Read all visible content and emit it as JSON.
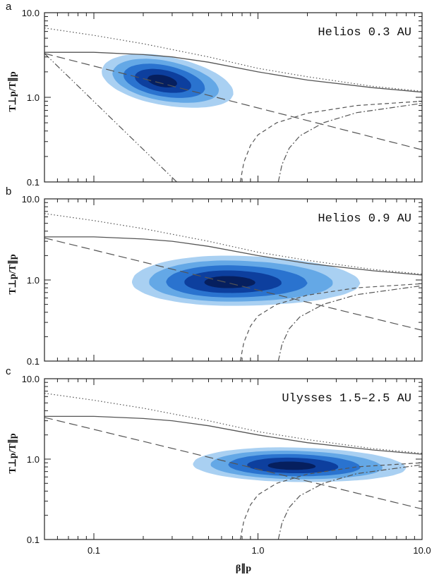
{
  "figure": {
    "xlabel": "β∥p",
    "ylabel": "T⊥p/T∥p",
    "x_tick_labels": [
      "0.1",
      "1.0",
      "10.0"
    ],
    "y_tick_labels": [
      "0.1",
      "1.0",
      "10.0"
    ]
  },
  "colors": {
    "contour_levels": [
      "#a9d0f2",
      "#64a8e6",
      "#2a73cf",
      "#0d3f9e",
      "#061f5e"
    ],
    "curves": "#555555"
  },
  "chart_data": [
    {
      "type": "contour",
      "panel": "a",
      "annotation": "Helios 0.3 AU",
      "xscale": "log",
      "yscale": "log",
      "xlim": [
        0.05,
        10.0
      ],
      "ylim": [
        0.1,
        10.0
      ],
      "xticks": [
        0.1,
        1.0,
        10.0
      ],
      "yticks": [
        0.1,
        1.0,
        10.0
      ],
      "distribution": {
        "peak": [
          0.26,
          1.55
        ],
        "x_extent": [
          0.11,
          0.72
        ],
        "y_extent": [
          0.82,
          3.1
        ]
      },
      "curves": [
        {
          "style": "solid",
          "x": [
            0.05,
            0.1,
            0.2,
            0.3,
            0.5,
            1.0,
            2.0,
            5.0,
            10.0
          ],
          "y": [
            3.4,
            3.4,
            3.2,
            3.0,
            2.6,
            2.0,
            1.6,
            1.3,
            1.15
          ]
        },
        {
          "style": "dotted",
          "x": [
            0.05,
            0.1,
            0.2,
            0.5,
            1.0,
            2.0,
            5.0,
            10.0
          ],
          "y": [
            6.6,
            5.4,
            4.3,
            3.0,
            2.2,
            1.75,
            1.35,
            1.18
          ]
        },
        {
          "style": "long-dashed",
          "x": [
            0.05,
            10.0
          ],
          "y": [
            3.3,
            0.24
          ]
        },
        {
          "style": "dash-dot-dot",
          "x": [
            0.05,
            0.32
          ],
          "y": [
            3.3,
            0.1
          ]
        },
        {
          "style": "dashed",
          "x": [
            0.78,
            0.82,
            0.9,
            1.0,
            1.3,
            2.0,
            4.0,
            10.0
          ],
          "y": [
            0.1,
            0.17,
            0.27,
            0.36,
            0.5,
            0.65,
            0.8,
            0.9
          ]
        },
        {
          "style": "dash-dot",
          "x": [
            1.33,
            1.4,
            1.55,
            1.8,
            2.5,
            4.0,
            10.0
          ],
          "y": [
            0.1,
            0.16,
            0.25,
            0.35,
            0.5,
            0.66,
            0.85
          ]
        }
      ]
    },
    {
      "type": "contour",
      "panel": "b",
      "annotation": "Helios 0.9 AU",
      "xscale": "log",
      "yscale": "log",
      "xlim": [
        0.05,
        10.0
      ],
      "ylim": [
        0.1,
        10.0
      ],
      "xticks": [
        0.1,
        1.0,
        10.0
      ],
      "yticks": [
        0.1,
        1.0,
        10.0
      ],
      "distribution": {
        "peak": [
          0.65,
          0.93
        ],
        "x_extent": [
          0.17,
          4.2
        ],
        "y_extent": [
          0.48,
          2.0
        ]
      },
      "curves": [
        {
          "style": "solid",
          "x": [
            0.05,
            0.1,
            0.2,
            0.3,
            0.5,
            1.0,
            2.0,
            5.0,
            10.0
          ],
          "y": [
            3.4,
            3.4,
            3.2,
            3.0,
            2.6,
            2.0,
            1.6,
            1.3,
            1.15
          ]
        },
        {
          "style": "dotted",
          "x": [
            0.05,
            0.1,
            0.2,
            0.5,
            1.0,
            2.0,
            5.0,
            10.0
          ],
          "y": [
            6.6,
            5.4,
            4.3,
            3.0,
            2.2,
            1.75,
            1.35,
            1.18
          ]
        },
        {
          "style": "long-dashed",
          "x": [
            0.05,
            10.0
          ],
          "y": [
            3.3,
            0.24
          ]
        },
        {
          "style": "dashed",
          "x": [
            0.78,
            0.82,
            0.9,
            1.0,
            1.3,
            2.0,
            4.0,
            10.0
          ],
          "y": [
            0.1,
            0.17,
            0.27,
            0.36,
            0.5,
            0.65,
            0.8,
            0.9
          ]
        },
        {
          "style": "dash-dot",
          "x": [
            1.33,
            1.4,
            1.55,
            1.8,
            2.5,
            4.0,
            10.0
          ],
          "y": [
            0.1,
            0.16,
            0.25,
            0.35,
            0.5,
            0.66,
            0.85
          ]
        }
      ]
    },
    {
      "type": "contour",
      "panel": "c",
      "annotation": "Ulysses 1.5–2.5 AU",
      "xscale": "log",
      "yscale": "log",
      "xlim": [
        0.05,
        10.0
      ],
      "ylim": [
        0.1,
        10.0
      ],
      "xticks": [
        0.1,
        1.0,
        10.0
      ],
      "yticks": [
        0.1,
        1.0,
        10.0
      ],
      "distribution": {
        "peak": [
          1.6,
          0.82
        ],
        "x_extent": [
          0.4,
          8.0
        ],
        "y_extent": [
          0.52,
          1.4
        ]
      },
      "curves": [
        {
          "style": "solid",
          "x": [
            0.05,
            0.1,
            0.2,
            0.3,
            0.5,
            1.0,
            2.0,
            5.0,
            10.0
          ],
          "y": [
            3.4,
            3.4,
            3.2,
            3.0,
            2.6,
            2.0,
            1.6,
            1.3,
            1.15
          ]
        },
        {
          "style": "dotted",
          "x": [
            0.05,
            0.1,
            0.2,
            0.5,
            1.0,
            2.0,
            5.0,
            10.0
          ],
          "y": [
            6.6,
            5.4,
            4.3,
            3.0,
            2.2,
            1.75,
            1.35,
            1.18
          ]
        },
        {
          "style": "long-dashed",
          "x": [
            0.05,
            10.0
          ],
          "y": [
            3.3,
            0.24
          ]
        },
        {
          "style": "dashed",
          "x": [
            0.78,
            0.82,
            0.9,
            1.0,
            1.3,
            2.0,
            4.0,
            10.0
          ],
          "y": [
            0.1,
            0.17,
            0.27,
            0.36,
            0.5,
            0.65,
            0.8,
            0.9
          ]
        },
        {
          "style": "dash-dot",
          "x": [
            1.33,
            1.4,
            1.55,
            1.8,
            2.5,
            4.0,
            10.0
          ],
          "y": [
            0.1,
            0.16,
            0.25,
            0.35,
            0.5,
            0.66,
            0.85
          ]
        }
      ]
    }
  ]
}
